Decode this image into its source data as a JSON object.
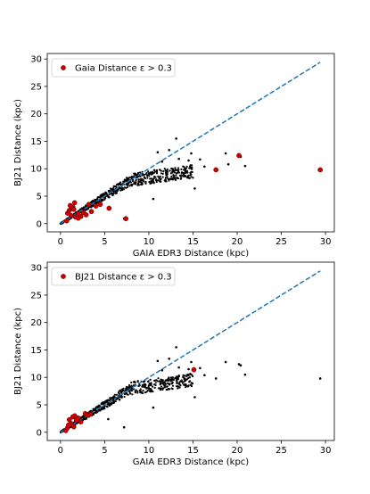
{
  "chart_data": [
    {
      "type": "scatter",
      "xlabel": "GAIA EDR3 Distance (kpc)",
      "ylabel": "BJ21 Distance (kpc)",
      "xlim": [
        -1.5,
        31.0
      ],
      "ylim": [
        -1.5,
        31.0
      ],
      "xticks": [
        0,
        5,
        10,
        15,
        20,
        25,
        30
      ],
      "yticks": [
        0,
        5,
        10,
        15,
        20,
        25,
        30
      ],
      "legend": {
        "label": "Gaia Distance ε  > 0.3",
        "placement": "top-left"
      },
      "reference_line": {
        "x": [
          0,
          29.4
        ],
        "y": [
          0,
          29.4
        ],
        "style": "dashed",
        "color": "#1f77b4"
      },
      "colors": {
        "points": "#000000",
        "highlight": "#cc0000"
      },
      "highlighted_points": {
        "x": [
          0.7,
          1.0,
          1.2,
          1.4,
          1.6,
          1.7,
          2.0,
          2.3,
          2.6,
          2.9,
          3.2,
          3.5,
          4.0,
          4.5,
          5.5,
          7.4,
          17.6,
          20.2,
          29.4,
          0.8,
          1.3,
          2.0,
          1.1,
          1.5
        ],
        "y": [
          0.5,
          2.4,
          1.5,
          3.0,
          3.8,
          1.2,
          1.8,
          1.3,
          2.0,
          1.6,
          3.5,
          2.2,
          3.2,
          3.5,
          2.8,
          0.9,
          9.8,
          12.4,
          9.8,
          1.9,
          2.8,
          1.0,
          3.3,
          2.6
        ]
      },
      "outlier_points": {
        "x": [
          7.2,
          9.0,
          11.0,
          11.5,
          12.3,
          13.1,
          13.4,
          14.5,
          14.8,
          15.2,
          15.8,
          16.3,
          18.7,
          20.4,
          20.9,
          19.0,
          12.8,
          10.5
        ],
        "y": [
          0.9,
          7.6,
          13.0,
          11.3,
          13.4,
          15.5,
          11.8,
          11.5,
          12.8,
          6.4,
          11.7,
          10.4,
          12.8,
          12.2,
          10.5,
          10.8,
          9.6,
          4.5
        ]
      },
      "bulk_trend": {
        "x_range": [
          0,
          15
        ],
        "slope": 1.0,
        "flatten_after": 8.0,
        "flatten_value": 8.0,
        "count": 620
      }
    },
    {
      "type": "scatter",
      "xlabel": "GAIA EDR3 Distance (kpc)",
      "ylabel": "BJ21 Distance (kpc)",
      "xlim": [
        -1.5,
        31.0
      ],
      "ylim": [
        -1.5,
        31.0
      ],
      "xticks": [
        0,
        5,
        10,
        15,
        20,
        25,
        30
      ],
      "yticks": [
        0,
        5,
        10,
        15,
        20,
        25,
        30
      ],
      "legend": {
        "label": "BJ21 Distance ε  > 0.3",
        "placement": "top-left"
      },
      "reference_line": {
        "x": [
          0,
          29.4
        ],
        "y": [
          0,
          29.4
        ],
        "style": "dashed",
        "color": "#1f77b4"
      },
      "colors": {
        "points": "#000000",
        "highlight": "#cc0000"
      },
      "highlighted_points": {
        "x": [
          0.6,
          0.8,
          1.0,
          1.2,
          1.4,
          1.5,
          1.8,
          2.0,
          2.3,
          2.8,
          3.0,
          3.4,
          0.9,
          1.6,
          15.1
        ],
        "y": [
          0.3,
          0.8,
          2.3,
          1.6,
          2.8,
          1.0,
          2.2,
          2.6,
          1.9,
          3.4,
          3.1,
          3.3,
          1.3,
          3.0,
          11.4
        ]
      },
      "outlier_points": {
        "x": [
          7.2,
          9.0,
          11.0,
          11.5,
          12.3,
          13.1,
          13.4,
          14.5,
          14.8,
          15.2,
          15.8,
          16.3,
          17.6,
          18.7,
          20.2,
          20.4,
          20.9,
          29.4,
          12.8,
          10.5,
          5.4
        ],
        "y": [
          0.9,
          7.6,
          13.0,
          11.3,
          13.4,
          15.5,
          11.8,
          11.5,
          12.8,
          6.4,
          11.7,
          10.4,
          9.8,
          12.8,
          12.4,
          12.2,
          10.5,
          9.8,
          9.6,
          4.5,
          2.4
        ]
      },
      "bulk_trend": {
        "x_range": [
          0,
          15
        ],
        "slope": 1.0,
        "flatten_after": 8.0,
        "flatten_value": 8.0,
        "count": 620
      }
    }
  ]
}
